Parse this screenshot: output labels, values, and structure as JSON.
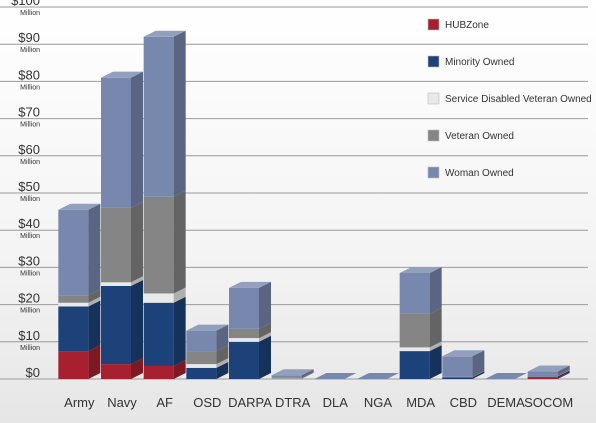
{
  "chart_data": {
    "type": "bar",
    "stacked": true,
    "style": "3d",
    "categories": [
      "Army",
      "Navy",
      "AF",
      "OSD",
      "DARPA",
      "DTRA",
      "DLA",
      "NGA",
      "MDA",
      "CBD",
      "DEMA",
      "SOCOM"
    ],
    "series": [
      {
        "name": "HUBZone",
        "color": "#a8202f",
        "values": [
          7.5,
          4,
          3.5,
          0,
          0,
          0,
          0,
          0,
          0,
          0,
          0,
          0.3
        ]
      },
      {
        "name": "Minority Owned",
        "color": "#1c4279",
        "values": [
          12,
          21,
          17,
          3,
          10,
          0,
          0,
          0,
          7.5,
          0.4,
          0,
          0.4
        ]
      },
      {
        "name": "Service Disabled Veteran Owned",
        "color": "#e9e9e9",
        "values": [
          1,
          1,
          2.5,
          1,
          1,
          0.1,
          0,
          0,
          1,
          0,
          0,
          0.1
        ]
      },
      {
        "name": "Veteran Owned",
        "color": "#858585",
        "values": [
          2,
          20,
          26,
          3.5,
          2.5,
          0.2,
          0,
          0,
          9,
          0.2,
          0,
          0.3
        ]
      },
      {
        "name": "Woman Owned",
        "color": "#7787ad",
        "values": [
          23,
          35,
          43,
          5.5,
          11,
          0.7,
          0,
          0,
          11,
          5.5,
          0,
          0.9
        ]
      }
    ],
    "yticks": [
      {
        "value": 0,
        "label": "$0",
        "unit": ""
      },
      {
        "value": 10,
        "label": "$10",
        "unit": "Million"
      },
      {
        "value": 20,
        "label": "$20",
        "unit": "Million"
      },
      {
        "value": 30,
        "label": "$30",
        "unit": "Million"
      },
      {
        "value": 40,
        "label": "$40",
        "unit": "Million"
      },
      {
        "value": 50,
        "label": "$50",
        "unit": "Million"
      },
      {
        "value": 60,
        "label": "$60",
        "unit": "Million"
      },
      {
        "value": 70,
        "label": "$70",
        "unit": "Million"
      },
      {
        "value": 80,
        "label": "$80",
        "unit": "Million"
      },
      {
        "value": 90,
        "label": "$90",
        "unit": "Million"
      },
      {
        "value": 100,
        "label": "$100",
        "unit": "Million"
      }
    ],
    "ylim": [
      0,
      100
    ],
    "grid": true,
    "legend": "top-right",
    "title": "",
    "xlabel": "",
    "ylabel": ""
  }
}
